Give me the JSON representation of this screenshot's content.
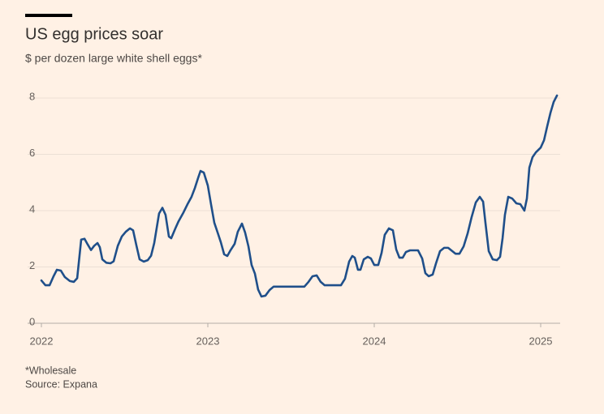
{
  "chart_data": {
    "type": "line",
    "title": "US egg prices soar",
    "subtitle": "$ per dozen large white shell eggs*",
    "footnote": "*Wholesale",
    "source": "Source: Expana",
    "xlim": [
      2022,
      2025.117
    ],
    "xticks": [
      2022,
      2023,
      2024,
      2025
    ],
    "ylim": [
      0,
      8
    ],
    "yticks": [
      0,
      2,
      4,
      6,
      8
    ],
    "grid": true,
    "series": [
      {
        "color": "#1f4f8a",
        "x": [
          2022.0,
          2022.024,
          2022.049,
          2022.073,
          2022.093,
          2022.117,
          2022.141,
          2022.171,
          2022.195,
          2022.215,
          2022.229,
          2022.239,
          2022.259,
          2022.278,
          2022.298,
          2022.317,
          2022.337,
          2022.351,
          2022.366,
          2022.39,
          2022.415,
          2022.434,
          2022.459,
          2022.483,
          2022.507,
          2022.532,
          2022.551,
          2022.571,
          2022.59,
          2022.615,
          2022.639,
          2022.659,
          2022.678,
          2022.707,
          2022.727,
          2022.746,
          2022.766,
          2022.78,
          2022.805,
          2022.824,
          2022.854,
          2022.878,
          2022.902,
          2022.922,
          2022.941,
          2022.956,
          2022.976,
          2023.0,
          2023.02,
          2023.039,
          2023.059,
          2023.078,
          2023.098,
          2023.117,
          2023.137,
          2023.161,
          2023.18,
          2023.205,
          2023.224,
          2023.244,
          2023.263,
          2023.283,
          2023.302,
          2023.322,
          2023.346,
          2023.371,
          2023.395,
          2023.58,
          2023.605,
          2023.629,
          2023.654,
          2023.678,
          2023.702,
          2023.8,
          2023.824,
          2023.849,
          2023.868,
          2023.883,
          2023.902,
          2023.917,
          2023.937,
          2023.961,
          2023.98,
          2024.0,
          2024.024,
          2024.044,
          2024.063,
          2024.088,
          2024.112,
          2024.132,
          2024.151,
          2024.171,
          2024.19,
          2024.215,
          2024.263,
          2024.288,
          2024.307,
          2024.327,
          2024.351,
          2024.371,
          2024.395,
          2024.42,
          2024.444,
          2024.463,
          2024.488,
          2024.512,
          2024.537,
          2024.561,
          2024.585,
          2024.61,
          2024.634,
          2024.654,
          2024.668,
          2024.688,
          2024.712,
          2024.737,
          2024.756,
          2024.771,
          2024.785,
          2024.805,
          2024.829,
          2024.854,
          2024.878,
          2024.902,
          2024.917,
          2024.932,
          2024.951,
          2024.971,
          2025.0,
          2025.02,
          2025.039,
          2025.059,
          2025.078,
          2025.098
        ],
        "values": [
          1.52,
          1.35,
          1.35,
          1.67,
          1.9,
          1.87,
          1.64,
          1.5,
          1.47,
          1.6,
          2.4,
          2.97,
          3.0,
          2.8,
          2.6,
          2.75,
          2.85,
          2.7,
          2.27,
          2.15,
          2.13,
          2.2,
          2.75,
          3.08,
          3.25,
          3.37,
          3.3,
          2.76,
          2.27,
          2.19,
          2.24,
          2.4,
          2.85,
          3.9,
          4.1,
          3.85,
          3.08,
          3.02,
          3.37,
          3.62,
          3.94,
          4.23,
          4.49,
          4.8,
          5.15,
          5.41,
          5.35,
          4.89,
          4.2,
          3.57,
          3.22,
          2.88,
          2.45,
          2.39,
          2.6,
          2.82,
          3.25,
          3.54,
          3.22,
          2.73,
          2.07,
          1.76,
          1.2,
          0.95,
          0.98,
          1.18,
          1.3,
          1.3,
          1.47,
          1.67,
          1.7,
          1.47,
          1.35,
          1.35,
          1.58,
          2.19,
          2.39,
          2.33,
          1.9,
          1.9,
          2.27,
          2.36,
          2.3,
          2.07,
          2.07,
          2.5,
          3.14,
          3.37,
          3.3,
          2.62,
          2.33,
          2.33,
          2.53,
          2.59,
          2.59,
          2.3,
          1.78,
          1.67,
          1.73,
          2.13,
          2.56,
          2.68,
          2.68,
          2.59,
          2.47,
          2.47,
          2.73,
          3.19,
          3.77,
          4.29,
          4.49,
          4.32,
          3.57,
          2.56,
          2.27,
          2.24,
          2.36,
          3.02,
          3.85,
          4.49,
          4.43,
          4.26,
          4.23,
          4.0,
          4.43,
          5.53,
          5.9,
          6.07,
          6.24,
          6.5,
          6.99,
          7.48,
          7.86,
          8.09
        ]
      }
    ]
  }
}
